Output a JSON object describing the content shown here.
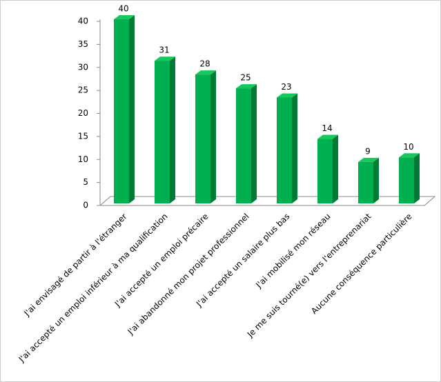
{
  "chart_data": {
    "type": "bar3d",
    "categories": [
      "J'ai envisagé de partir à l'étranger",
      "J'ai accepté un emploi inférieur à ma qualification",
      "J'ai accepté un emploi précaire",
      "J'ai abandonné mon projet professionnel",
      "J'ai accepté un salaire plus bas",
      "J'ai mobilisé mon réseau",
      "Je me suis tourné(e) vers l'entreprenariat",
      "Aucune conséquence particulière"
    ],
    "values": [
      40,
      31,
      28,
      25,
      23,
      14,
      9,
      10
    ],
    "color": "#00b050",
    "ylim": [
      0,
      40
    ],
    "yticks": [
      0,
      5,
      10,
      15,
      20,
      25,
      30,
      35,
      40
    ],
    "grid": false
  }
}
